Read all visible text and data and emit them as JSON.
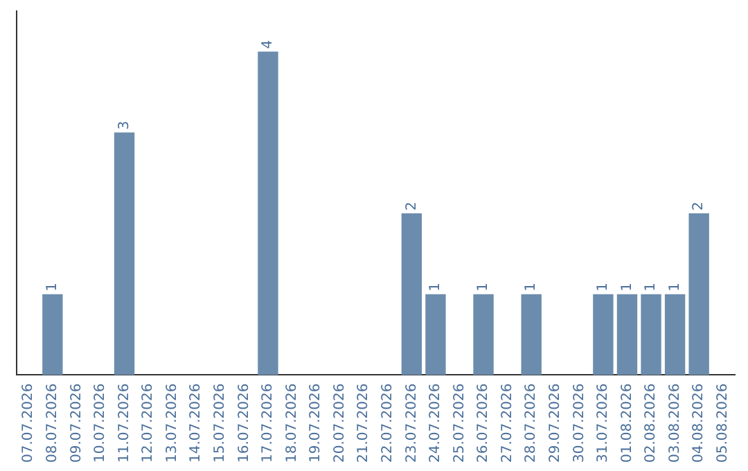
{
  "chart_data": {
    "type": "bar",
    "categories": [
      "07.07.2026",
      "08.07.2026",
      "09.07.2026",
      "10.07.2026",
      "11.07.2026",
      "12.07.2026",
      "13.07.2026",
      "14.07.2026",
      "15.07.2026",
      "16.07.2026",
      "17.07.2026",
      "18.07.2026",
      "19.07.2026",
      "20.07.2026",
      "21.07.2026",
      "22.07.2026",
      "23.07.2026",
      "24.07.2026",
      "25.07.2026",
      "26.07.2026",
      "27.07.2026",
      "28.07.2026",
      "29.07.2026",
      "30.07.2026",
      "31.07.2026",
      "01.08.2026",
      "02.08.2026",
      "03.08.2026",
      "04.08.2026",
      "05.08.2026"
    ],
    "values": [
      0,
      1,
      0,
      0,
      3,
      0,
      0,
      0,
      0,
      0,
      4,
      0,
      0,
      0,
      0,
      0,
      2,
      1,
      0,
      1,
      0,
      1,
      0,
      0,
      1,
      1,
      1,
      1,
      2,
      0
    ],
    "value_labels": [
      null,
      "1",
      null,
      null,
      "3",
      null,
      null,
      null,
      null,
      null,
      "4",
      null,
      null,
      null,
      null,
      null,
      "2",
      "1",
      null,
      "1",
      null,
      "1",
      null,
      null,
      "1",
      "1",
      "1",
      "1",
      "2",
      null
    ],
    "color": "#6b8cad",
    "grid": false,
    "legend": false
  }
}
